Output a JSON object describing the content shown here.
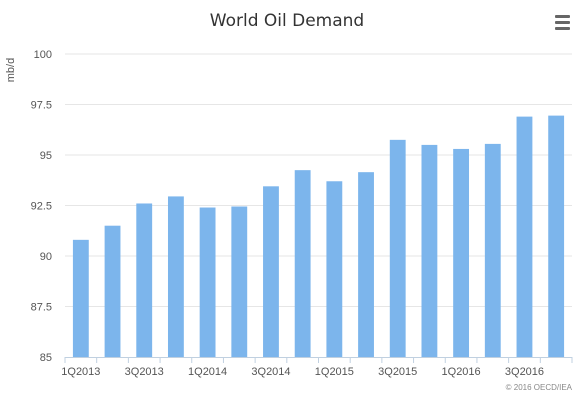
{
  "chart_data": {
    "type": "bar",
    "title": "World Oil Demand",
    "xlabel": "",
    "ylabel": "mb/d",
    "ylim": [
      85,
      100
    ],
    "yticks": [
      85,
      87.5,
      90,
      92.5,
      95,
      97.5,
      100
    ],
    "ytick_labels": [
      "85",
      "87.5",
      "90",
      "92.5",
      "95",
      "97.5",
      "100"
    ],
    "categories": [
      "1Q2013",
      "2Q2013",
      "3Q2013",
      "4Q2013",
      "1Q2014",
      "2Q2014",
      "3Q2014",
      "4Q2014",
      "1Q2015",
      "2Q2015",
      "3Q2015",
      "4Q2015",
      "1Q2016",
      "2Q2016",
      "3Q2016",
      "4Q2016"
    ],
    "visible_xtick_labels": [
      "1Q2013",
      "3Q2013",
      "1Q2014",
      "3Q2014",
      "1Q2015",
      "3Q2015",
      "1Q2016",
      "3Q2016"
    ],
    "values": [
      90.8,
      91.5,
      92.6,
      92.95,
      92.4,
      92.45,
      93.45,
      94.25,
      93.7,
      94.15,
      95.75,
      95.5,
      95.3,
      95.55,
      96.9,
      96.95
    ],
    "grid": true,
    "legend": "none",
    "bar_color": "#7cb5ec",
    "credit": "© 2016 OECD/IEA"
  },
  "menu": {
    "icon": "hamburger-menu-icon"
  }
}
